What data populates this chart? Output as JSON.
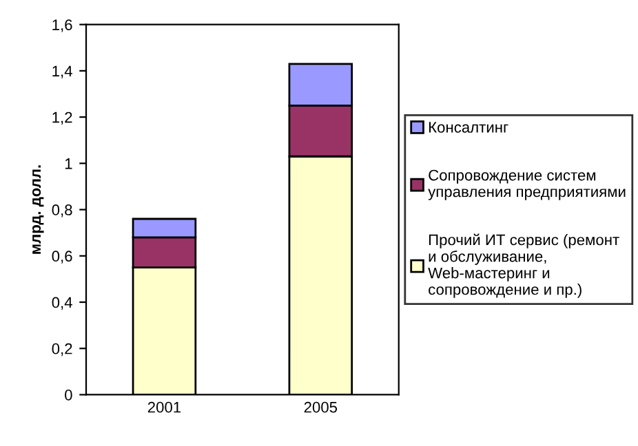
{
  "chart_data": {
    "type": "bar",
    "stacked": true,
    "ylabel": "млрд. долл.",
    "categories": [
      "2001",
      "2005"
    ],
    "series": [
      {
        "name": "Прочий ИТ сервис (ремонт и обслуживание, Web-мастеринг и сопровождение и пр.)",
        "color": "#ffffcc",
        "values": [
          0.55,
          1.03
        ]
      },
      {
        "name": "Сопровождение систем управления предприятиями",
        "color": "#993366",
        "values": [
          0.13,
          0.22
        ]
      },
      {
        "name": "Консалтинг",
        "color": "#9999ff",
        "values": [
          0.08,
          0.18
        ]
      }
    ],
    "ylim": [
      0,
      1.6
    ],
    "yticks": [
      0,
      {
        "value": 0.2,
        "label": "0,2"
      },
      {
        "value": 0.4,
        "label": "0,4"
      },
      {
        "value": 0.6,
        "label": "0,6"
      },
      {
        "value": 0.8,
        "label": "0,8"
      },
      1,
      {
        "value": 1.2,
        "label": "1,2"
      },
      {
        "value": 1.4,
        "label": "1,4"
      },
      {
        "value": 1.6,
        "label": "1,6"
      }
    ],
    "grid": false,
    "legend": "right"
  }
}
